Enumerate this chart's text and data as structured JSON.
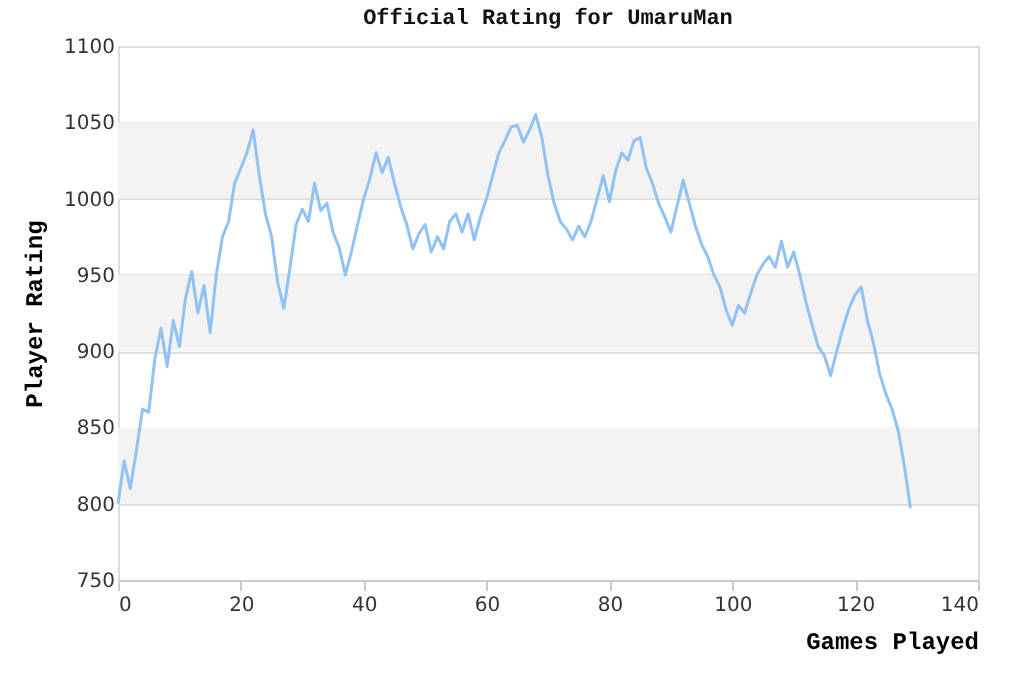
{
  "chart_data": {
    "type": "line",
    "title": "Official Rating for UmaruMan",
    "xlabel": "Games Played",
    "ylabel": "Player Rating",
    "x": [
      0,
      1,
      2,
      3,
      4,
      5,
      6,
      7,
      8,
      9,
      10,
      11,
      12,
      13,
      14,
      15,
      16,
      17,
      18,
      19,
      20,
      21,
      22,
      23,
      24,
      25,
      26,
      27,
      28,
      29,
      30,
      31,
      32,
      33,
      34,
      35,
      36,
      37,
      38,
      39,
      40,
      41,
      42,
      43,
      44,
      45,
      46,
      47,
      48,
      49,
      50,
      51,
      52,
      53,
      54,
      55,
      56,
      57,
      58,
      59,
      60,
      61,
      62,
      63,
      64,
      65,
      66,
      67,
      68,
      69,
      70,
      71,
      72,
      73,
      74,
      75,
      76,
      77,
      78,
      79,
      80,
      81,
      82,
      83,
      84,
      85,
      86,
      87,
      88,
      89,
      90,
      91,
      92,
      93,
      94,
      95,
      96,
      97,
      98,
      99,
      100,
      101,
      102,
      103,
      104,
      105,
      106,
      107,
      108,
      109,
      110,
      111,
      112,
      113,
      114,
      115,
      116,
      117,
      118,
      119,
      120,
      121,
      122,
      123,
      124,
      125,
      126,
      127,
      128,
      129
    ],
    "series": [
      {
        "color": "#8fc3f5",
        "values": [
          800,
          828,
          810,
          835,
          862,
          860,
          895,
          915,
          890,
          920,
          903,
          935,
          952,
          925,
          943,
          912,
          950,
          975,
          985,
          1010,
          1020,
          1030,
          1045,
          1015,
          990,
          975,
          945,
          928,
          955,
          983,
          993,
          985,
          1010,
          992,
          997,
          978,
          968,
          950,
          965,
          983,
          1000,
          1013,
          1030,
          1017,
          1027,
          1010,
          995,
          983,
          967,
          977,
          983,
          965,
          975,
          967,
          985,
          990,
          978,
          990,
          973,
          988,
          1000,
          1015,
          1030,
          1038,
          1047,
          1048,
          1037,
          1045,
          1055,
          1040,
          1015,
          997,
          985,
          980,
          973,
          982,
          975,
          985,
          1000,
          1015,
          998,
          1018,
          1030,
          1025,
          1038,
          1040,
          1020,
          1010,
          997,
          988,
          978,
          995,
          1012,
          997,
          982,
          970,
          962,
          950,
          942,
          927,
          917,
          930,
          925,
          938,
          950,
          957,
          962,
          955,
          972,
          955,
          965,
          950,
          932,
          917,
          903,
          897,
          884,
          900,
          915,
          928,
          937,
          942,
          920,
          905,
          885,
          872,
          862,
          848,
          825,
          797
        ]
      }
    ],
    "xlim": [
      0,
      140
    ],
    "xticks": [
      0,
      20,
      40,
      60,
      80,
      100,
      120,
      140
    ],
    "ylim": [
      750,
      1100
    ],
    "yticks": [
      750,
      800,
      850,
      900,
      950,
      1000,
      1050,
      1100
    ],
    "bands": [
      {
        "axis": "y",
        "from": 800,
        "to": 850,
        "color": "#f3f3f3"
      },
      {
        "axis": "y",
        "from": 900,
        "to": 950,
        "color": "#f3f3f3"
      },
      {
        "axis": "y",
        "from": 1000,
        "to": 1050,
        "color": "#f3f3f3"
      }
    ],
    "grid": "y",
    "marker": "none",
    "line_style": "solid"
  }
}
